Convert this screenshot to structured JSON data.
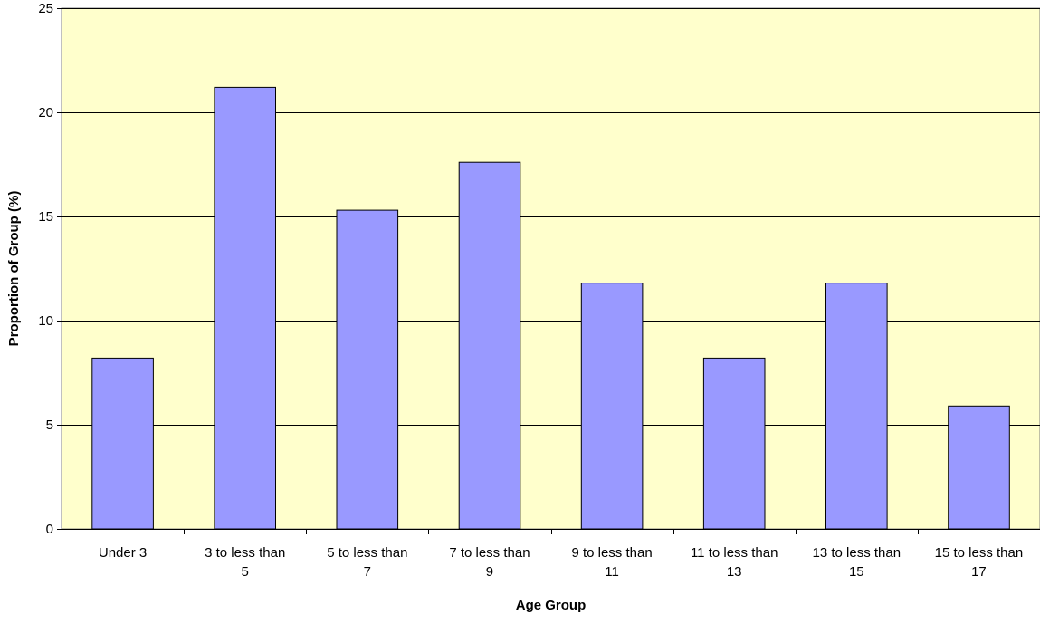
{
  "chart_data": {
    "type": "bar",
    "title": "",
    "xlabel": "Age Group",
    "ylabel": "Proportion of Group (%)",
    "categories": [
      [
        "Under 3"
      ],
      [
        "3 to less than",
        "5"
      ],
      [
        "5 to less than",
        "7"
      ],
      [
        "7 to less than",
        "9"
      ],
      [
        "9 to less than",
        "11"
      ],
      [
        "11 to less than",
        "13"
      ],
      [
        "13 to less than",
        "15"
      ],
      [
        "15 to less than",
        "17"
      ]
    ],
    "values": [
      8.2,
      21.2,
      15.3,
      17.6,
      11.8,
      8.2,
      11.8,
      5.9
    ],
    "ylim": [
      0,
      25
    ],
    "yticks": [
      0,
      5,
      10,
      15,
      20,
      25
    ],
    "grid": true,
    "legend": "none",
    "colors": {
      "plot_background": "#ffffcc",
      "bar_fill": "#9999ff",
      "bar_stroke": "#000000",
      "gridline": "#000000"
    }
  }
}
